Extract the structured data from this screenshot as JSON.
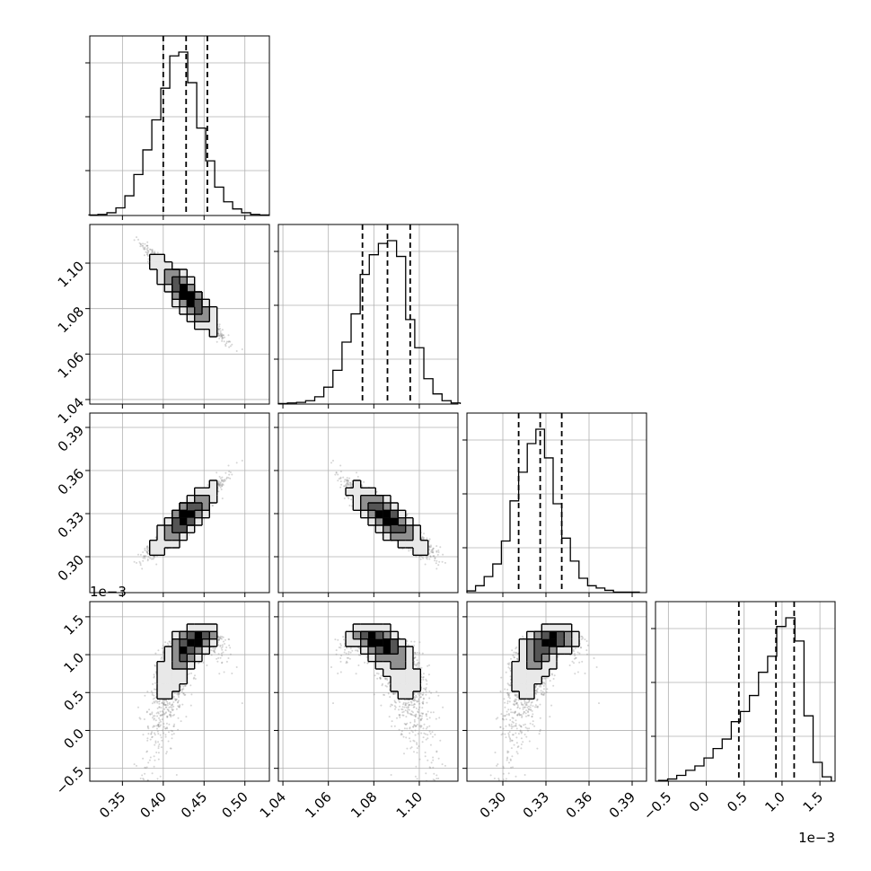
{
  "chart_data": {
    "type": "corner",
    "title": "",
    "grid": true,
    "legend": "none",
    "colors": {
      "line": "#000000",
      "grid": "#b0b0b0",
      "points": "#888888",
      "fill_light": "#e8e8e8",
      "fill_mid": "#909090",
      "fill_dark": "#000000"
    },
    "parameters": [
      {
        "label": "",
        "mean": 0.428,
        "std": 0.019,
        "quantiles": [
          0.4,
          0.428,
          0.454
        ],
        "lim": [
          0.31,
          0.53
        ],
        "ticks": [
          0.35,
          0.4,
          0.45,
          0.5
        ],
        "tick_labels": [
          "0.35",
          "0.40",
          "0.45",
          "0.50"
        ],
        "scale_label": ""
      },
      {
        "label": "",
        "mean": 1.086,
        "std": 0.008,
        "quantiles": [
          1.075,
          1.086,
          1.096
        ],
        "lim": [
          1.038,
          1.117
        ],
        "ticks": [
          1.04,
          1.06,
          1.08,
          1.1
        ],
        "tick_labels": [
          "1.04",
          "1.06",
          "1.08",
          "1.10"
        ],
        "scale_label": ""
      },
      {
        "label": "",
        "mean": 0.327,
        "std": 0.011,
        "quantiles": [
          0.311,
          0.326,
          0.341
        ],
        "lim": [
          0.275,
          0.4
        ],
        "ticks": [
          0.3,
          0.33,
          0.36,
          0.39
        ],
        "tick_labels": [
          "0.30",
          "0.33",
          "0.36",
          "0.39"
        ],
        "scale_label": ""
      },
      {
        "label": "",
        "mean": 0.00085,
        "std": 0.00034,
        "quantiles": [
          0.00043,
          0.00092,
          0.00116
        ],
        "lim": [
          -0.00067,
          0.0017
        ],
        "ticks": [
          -0.0005,
          0.0,
          0.0005,
          0.001,
          0.0015
        ],
        "tick_labels": [
          "−0.5",
          "0.0",
          "0.5",
          "1.0",
          "1.5"
        ],
        "scale_label": "1e−3"
      }
    ],
    "histograms": [
      {
        "bins": [
          0.309,
          0.32,
          0.331,
          0.342,
          0.353,
          0.364,
          0.375,
          0.386,
          0.397,
          0.408,
          0.419,
          0.43,
          0.441,
          0.452,
          0.463,
          0.474,
          0.485,
          0.496,
          0.507,
          0.518,
          0.529
        ],
        "counts": [
          1,
          2,
          5,
          14,
          36,
          75,
          120,
          175,
          233,
          292,
          299,
          243,
          160,
          100,
          52,
          25,
          12,
          5,
          2,
          1
        ]
      },
      {
        "bins": [
          1.038,
          1.042,
          1.046,
          1.05,
          1.054,
          1.058,
          1.062,
          1.066,
          1.07,
          1.074,
          1.078,
          1.082,
          1.086,
          1.09,
          1.094,
          1.098,
          1.102,
          1.106,
          1.11,
          1.114,
          1.118
        ],
        "counts": [
          1,
          2,
          3,
          6,
          13,
          30,
          60,
          110,
          160,
          230,
          265,
          285,
          290,
          262,
          150,
          100,
          45,
          18,
          6,
          2
        ]
      },
      {
        "bins": [
          0.275,
          0.281,
          0.287,
          0.293,
          0.299,
          0.305,
          0.311,
          0.317,
          0.323,
          0.329,
          0.335,
          0.341,
          0.347,
          0.353,
          0.359,
          0.365,
          0.371,
          0.377,
          0.383,
          0.389,
          0.395
        ],
        "counts": [
          3,
          12,
          28,
          50,
          90,
          160,
          210,
          260,
          285,
          235,
          155,
          95,
          55,
          25,
          12,
          8,
          4,
          1,
          1,
          1
        ]
      },
      {
        "bins": [
          -0.00063,
          -0.00051,
          -0.00039,
          -0.00027,
          -0.00015,
          -3e-05,
          9e-05,
          0.00021,
          0.00033,
          0.00045,
          0.00057,
          0.00069,
          0.00081,
          0.00093,
          0.00105,
          0.00117,
          0.00129,
          0.00141,
          0.00153,
          0.00165
        ],
        "counts": [
          1,
          3,
          8,
          15,
          21,
          32,
          45,
          58,
          82,
          96,
          118,
          150,
          172,
          213,
          225,
          193,
          90,
          26,
          6
        ]
      }
    ]
  }
}
